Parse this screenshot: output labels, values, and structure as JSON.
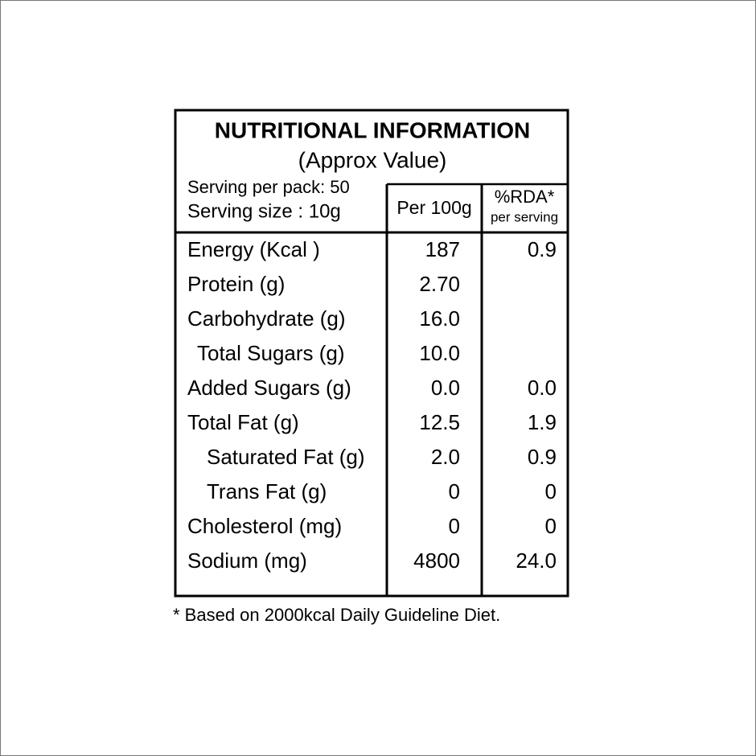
{
  "header": {
    "title": "NUTRITIONAL INFORMATION",
    "subtitle": "(Approx Value)"
  },
  "serving": {
    "per_pack": "Serving per pack: 50",
    "size": "Serving size : 10g"
  },
  "columns": {
    "per100g": "Per 100g",
    "rda": "%RDA*",
    "rda_note": "per serving"
  },
  "table": {
    "rows": [
      {
        "name": "Energy (Kcal )",
        "per100g": "187",
        "rda": "0.9",
        "indent": 0
      },
      {
        "name": "Protein (g)",
        "per100g": "2.70",
        "rda": null,
        "indent": 0
      },
      {
        "name": "Carbohydrate (g)",
        "per100g": "16.0",
        "rda": null,
        "indent": 0
      },
      {
        "name": "Total Sugars (g)",
        "per100g": "10.0",
        "rda": null,
        "indent": 1
      },
      {
        "name": "Added Sugars (g)",
        "per100g": "0.0",
        "rda": "0.0",
        "indent": 0
      },
      {
        "name": "Total Fat (g)",
        "per100g": "12.5",
        "rda": "1.9",
        "indent": 0
      },
      {
        "name": "Saturated Fat (g)",
        "per100g": "2.0",
        "rda": "0.9",
        "indent": 2
      },
      {
        "name": "Trans Fat (g)",
        "per100g": "0",
        "rda": "0",
        "indent": 2
      },
      {
        "name": "Cholesterol (mg)",
        "per100g": "0",
        "rda": "0",
        "indent": 0
      },
      {
        "name": "Sodium (mg)",
        "per100g": "4800",
        "rda": "24.0",
        "indent": 0
      }
    ]
  },
  "footnote": "* Based on 2000kcal Daily Guideline Diet."
}
